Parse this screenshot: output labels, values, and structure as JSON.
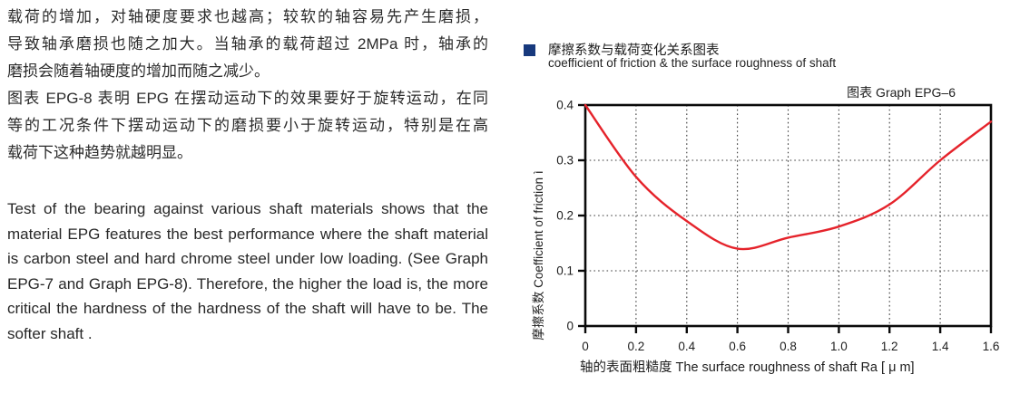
{
  "left": {
    "cn_lines": [
      "载荷的增加，对轴硬度要求也越高；较软的轴容易先产生磨损，",
      "导致轴承磨损也随之加大。当轴承的载荷超过 2MPa 时，轴承的",
      "磨损会随着轴硬度的增加而随之减少。",
      "图表 EPG-8 表明 EPG 在摆动运动下的效果要好于旋转运动，在同",
      "等的工况条件下摆动运动下的磨损要小于旋转运动，特别是在高",
      "载荷下这种趋势就越明显。"
    ],
    "en_lines": [
      "Test of the bearing against various shaft materials shows that the",
      "material EPG features the best performance where the shaft material",
      "is carbon steel and hard chrome steel under low loading. (See Graph",
      "EPG-7 and Graph EPG-8). Therefore, the higher the load is, the more",
      "critical the hardness of the hardness of the shaft will have to be. The",
      "softer shaft ."
    ]
  },
  "chart": {
    "bullet_color": "#17397d",
    "title_cn": "摩擦系数与载荷变化关系图表",
    "subtitle_en": "coefficient of friction &  the surface roughness of shaft",
    "graph_label": "图表 Graph EPG–6"
  },
  "chart_data": {
    "type": "line",
    "title": "摩擦系数与载荷变化关系图表 coefficient of friction & the surface roughness of shaft",
    "x": [
      0,
      0.2,
      0.4,
      0.6,
      0.8,
      1.0,
      1.2,
      1.4,
      1.6
    ],
    "y": [
      0.4,
      0.27,
      0.19,
      0.14,
      0.16,
      0.18,
      0.22,
      0.3,
      0.37
    ],
    "xlabel": "轴的表面粗糙度 The surface roughness of shaft Ra [ μ m]",
    "ylabel": "摩擦系数  Coefficient of friction ì",
    "xlim": [
      0,
      1.6
    ],
    "ylim": [
      0,
      0.4
    ],
    "xticks": [
      "0",
      "0.2",
      "0.4",
      "0.6",
      "0.8",
      "1.0",
      "1.2",
      "1.4",
      "1.6"
    ],
    "yticks": [
      "0",
      "0.1",
      "0.2",
      "0.3",
      "0.4"
    ],
    "grid": true,
    "legend": null,
    "line_color": "#e5232b",
    "frame_color": "#0a0a0a",
    "grid_color": "#3a3a3a"
  }
}
